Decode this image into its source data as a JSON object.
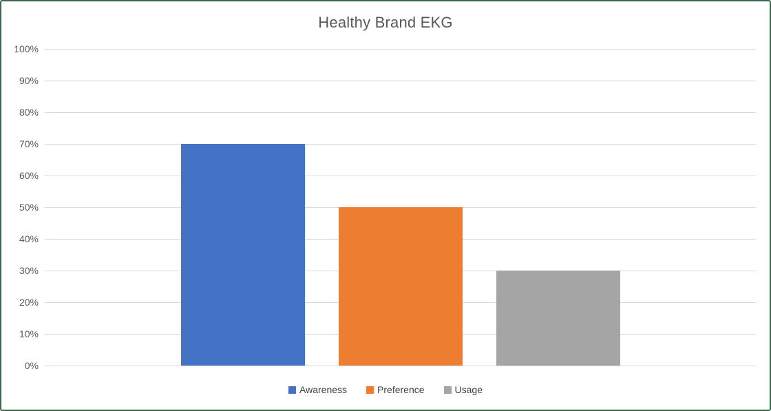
{
  "title": "Healthy Brand EKG",
  "chart_data": {
    "type": "bar",
    "title": "Healthy Brand EKG",
    "categories": [
      "Awareness",
      "Preference",
      "Usage"
    ],
    "values": [
      70,
      50,
      30
    ],
    "value_unit": "percent",
    "xlabel": "",
    "ylabel": "",
    "ylim": [
      0,
      100
    ],
    "ytick_step": 10,
    "ytick_labels": [
      "0%",
      "10%",
      "20%",
      "30%",
      "40%",
      "50%",
      "60%",
      "70%",
      "80%",
      "90%",
      "100%"
    ],
    "grid": true,
    "legend_position": "bottom",
    "legend": [
      {
        "label": "Awareness",
        "color": "#4472C4"
      },
      {
        "label": "Preference",
        "color": "#ED7D31"
      },
      {
        "label": "Usage",
        "color": "#A5A5A5"
      }
    ]
  },
  "colors": {
    "bar_awareness": "#4472C4",
    "bar_preference": "#ED7D31",
    "bar_usage": "#A5A5A5",
    "gridline": "#D9D9D9",
    "title_text": "#595959",
    "axis_text": "#595959",
    "legend_text": "#404040",
    "frame_border": "#3A684C",
    "background": "#FFFFFF"
  }
}
